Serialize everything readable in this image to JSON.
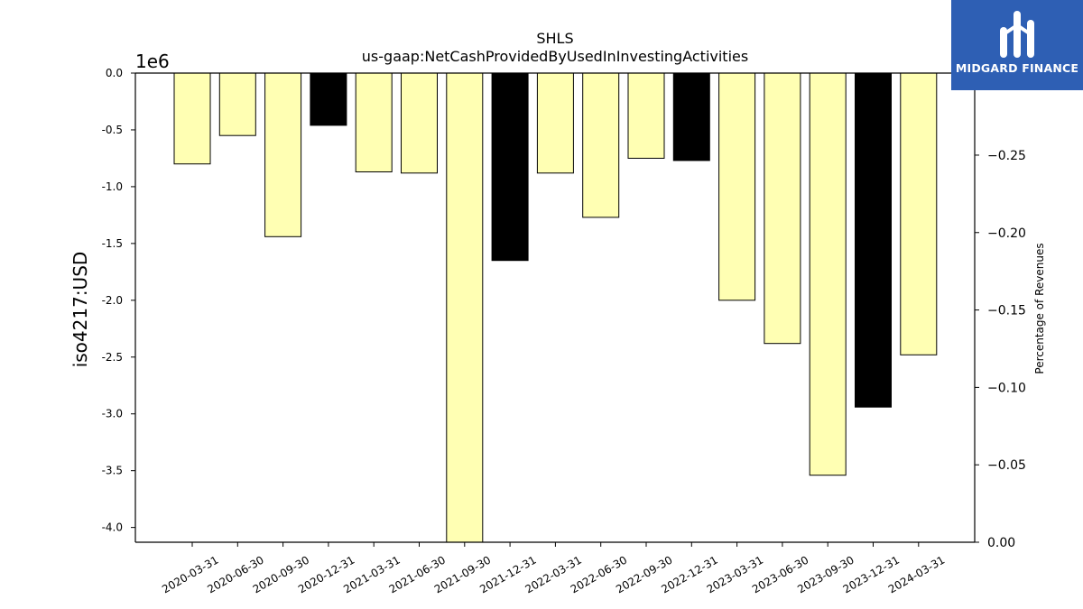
{
  "chart_data": {
    "type": "bar",
    "title": "SHLS",
    "subtitle": "us-gaap:NetCashProvidedByUsedInInvestingActivities",
    "ylabel": "iso4217:USD",
    "y_offset_label": "1e6",
    "y2label": "Percentage of Revenues",
    "ylim": [
      -4.13,
      0
    ],
    "y2lim": [
      0,
      -0.303
    ],
    "yticks": [
      "0.0",
      "-0.5",
      "-1.0",
      "-1.5",
      "-2.0",
      "-2.5",
      "-3.0",
      "-3.5",
      "-4.0"
    ],
    "y2ticks": [
      "−0.25",
      "−0.20",
      "−0.15",
      "−0.10",
      "−0.05",
      "0.00"
    ],
    "categories": [
      "2020-03-31",
      "2020-06-30",
      "2020-09-30",
      "2020-12-31",
      "2021-03-31",
      "2021-06-30",
      "2021-09-30",
      "2021-12-31",
      "2022-03-31",
      "2022-06-30",
      "2022-09-30",
      "2022-12-31",
      "2023-03-31",
      "2023-06-30",
      "2023-09-30",
      "2023-12-31",
      "2024-03-31"
    ],
    "values": [
      -0.8,
      -0.55,
      -1.44,
      -0.46,
      -0.87,
      -0.88,
      -4.13,
      -1.65,
      -0.88,
      -1.27,
      -0.75,
      -0.77,
      -2.0,
      -2.38,
      -3.54,
      -2.94,
      -2.48
    ],
    "bar_colors": [
      "#ffffb3",
      "#ffffb3",
      "#ffffb3",
      "#000000",
      "#ffffb3",
      "#ffffb3",
      "#ffffb3",
      "#000000",
      "#ffffb3",
      "#ffffb3",
      "#ffffb3",
      "#000000",
      "#ffffb3",
      "#ffffb3",
      "#ffffb3",
      "#000000",
      "#ffffb3"
    ],
    "grid": false,
    "legend": "none"
  },
  "logo": {
    "text": "MIDGARD FINANCE",
    "background": "#2e5fb4"
  }
}
